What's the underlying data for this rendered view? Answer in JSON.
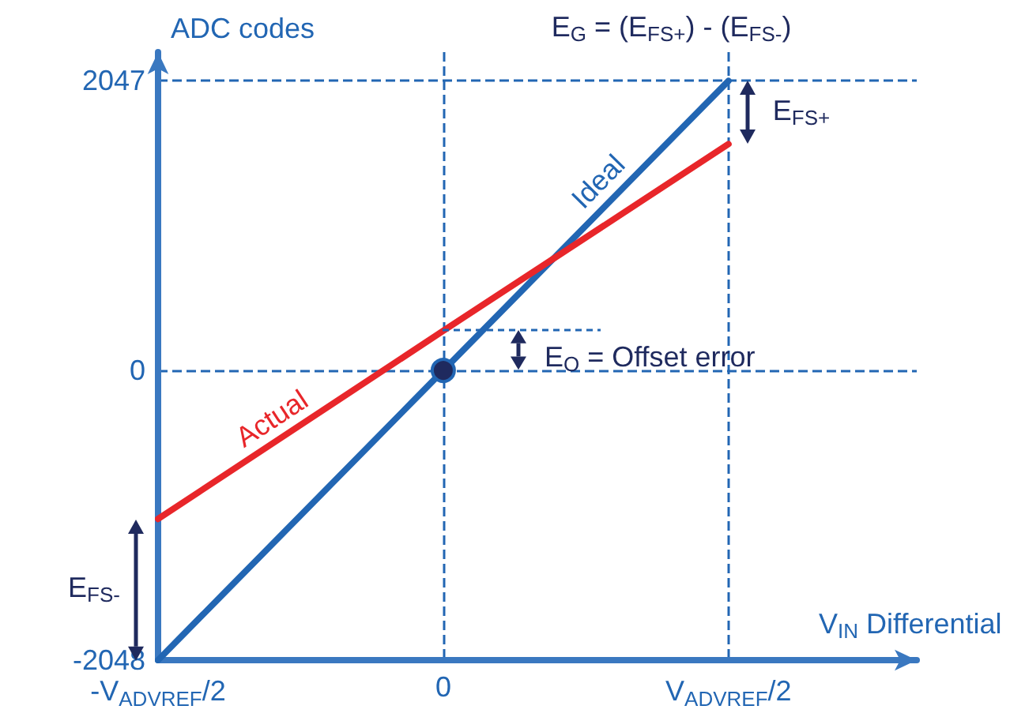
{
  "chart_data": {
    "type": "line",
    "xlabel": "V$_{IN}$ Differential",
    "ylabel": "ADC codes",
    "categories": [
      "-V$_{ADVREF}$/2",
      "0",
      "V$_{ADVREF}$/2"
    ],
    "ylim": [
      -2048,
      2250
    ],
    "yticks": [
      -2048,
      0,
      2047
    ],
    "series": [
      {
        "name": "Ideal",
        "color": "#2266b3",
        "values": [
          -2048,
          0,
          2047
        ]
      },
      {
        "name": "Actual",
        "color": "#e8262a",
        "values": [
          -1050,
          280,
          1600
        ]
      },
      {
        "type": "scatter",
        "color": "#1f2a5e",
        "values": [
          null,
          0,
          null
        ],
        "marker": "circle"
      }
    ],
    "annotations": [
      "E$_{G}$ = (E$_{FS+}$) - (E$_{FS-}$)",
      {
        "text": "E$_{FS+}$",
        "x": "V$_{ADVREF}$/2",
        "y": 1600
      },
      {
        "text": "E$_{O}$ = Offset error",
        "x": "0",
        "y": 280
      },
      {
        "text": "E$_{FS-}$",
        "x": "-V$_{ADVREF}$/2",
        "y": -1050
      }
    ],
    "grid": true,
    "line_style": "solid",
    "marker": "none"
  }
}
